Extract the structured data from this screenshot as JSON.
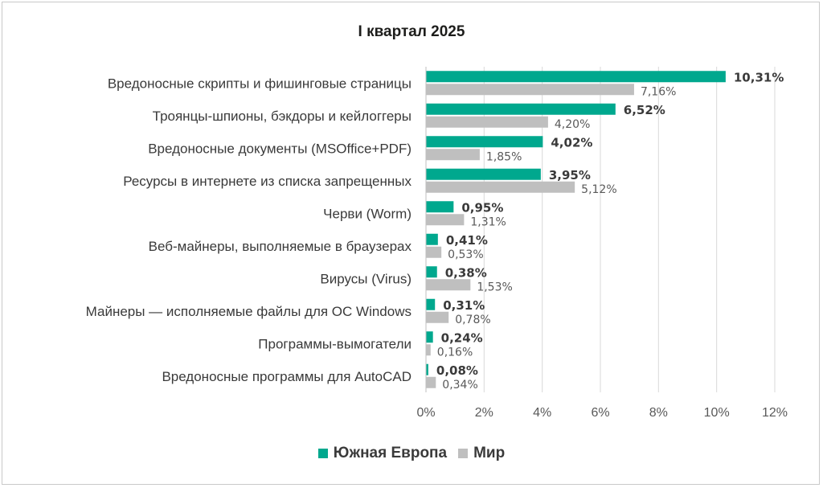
{
  "chart_data": {
    "type": "bar",
    "orientation": "horizontal",
    "title": "I квартал 2025",
    "categories": [
      "Вредоносные скрипты и фишинговые страницы",
      "Троянцы-шпионы, бэкдоры и кейлоггеры",
      "Вредоносные документы (MSOffice+PDF)",
      "Ресурсы в интернете из списка запрещенных",
      "Черви (Worm)",
      "Веб-майнеры, выполняемые в браузерах",
      "Вирусы (Virus)",
      "Майнеры — исполняемые файлы для ОС Windows",
      "Программы-вымогатели",
      "Вредоносные программы для AutoCAD"
    ],
    "series": [
      {
        "name": "Южная Европа",
        "color": "#00a88e",
        "values": [
          10.31,
          6.52,
          4.02,
          3.95,
          0.95,
          0.41,
          0.38,
          0.31,
          0.24,
          0.08
        ],
        "labels": [
          "10,31%",
          "6,52%",
          "4,02%",
          "3,95%",
          "0,95%",
          "0,41%",
          "0,38%",
          "0,31%",
          "0,24%",
          "0,08%"
        ]
      },
      {
        "name": "Мир",
        "color": "#bfbfbf",
        "values": [
          7.16,
          4.2,
          1.85,
          5.12,
          1.31,
          0.53,
          1.53,
          0.78,
          0.16,
          0.34
        ],
        "labels": [
          "7,16%",
          "4,20%",
          "1,85%",
          "5,12%",
          "1,31%",
          "0,53%",
          "1,53%",
          "0,78%",
          "0,16%",
          "0,34%"
        ]
      }
    ],
    "xlim": [
      0,
      12
    ],
    "xticks": [
      0,
      2,
      4,
      6,
      8,
      10,
      12
    ],
    "xtick_labels": [
      "0%",
      "2%",
      "4%",
      "6%",
      "8%",
      "10%",
      "12%"
    ],
    "grid": true,
    "legend_position": "bottom"
  }
}
